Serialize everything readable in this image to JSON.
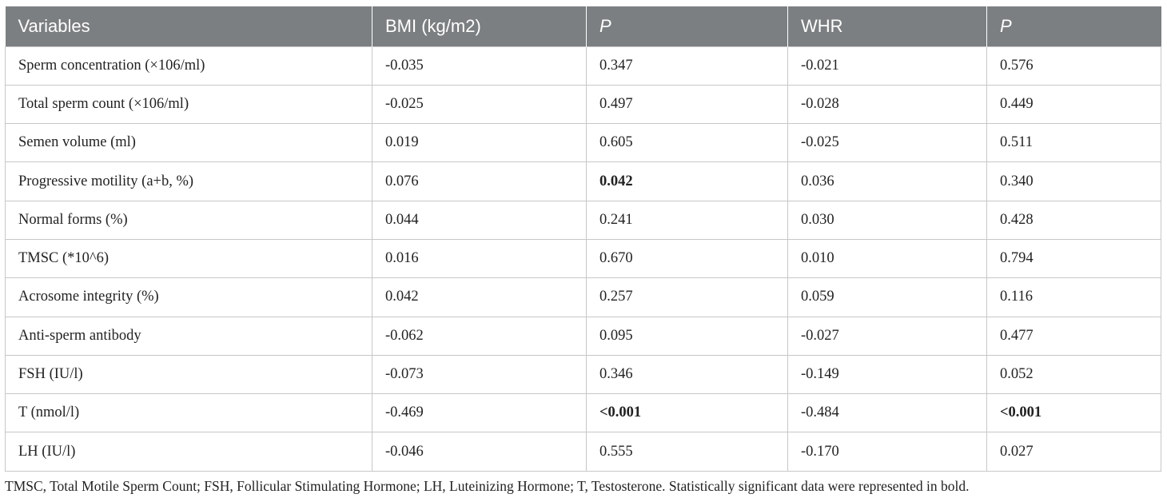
{
  "table": {
    "headers": [
      {
        "label": "Variables",
        "italic": false
      },
      {
        "label": "BMI (kg/m2)",
        "italic": false
      },
      {
        "label": "P",
        "italic": true
      },
      {
        "label": "WHR",
        "italic": false
      },
      {
        "label": "P",
        "italic": true
      }
    ],
    "rows": [
      {
        "variable": "Sperm concentration (×106/ml)",
        "bmi": "-0.035",
        "p_bmi": "0.347",
        "whr": "-0.021",
        "p_whr": "0.576",
        "bold": []
      },
      {
        "variable": "Total sperm count (×106/ml)",
        "bmi": "-0.025",
        "p_bmi": "0.497",
        "whr": "-0.028",
        "p_whr": "0.449",
        "bold": []
      },
      {
        "variable": "Semen volume (ml)",
        "bmi": "0.019",
        "p_bmi": "0.605",
        "whr": "-0.025",
        "p_whr": "0.511",
        "bold": []
      },
      {
        "variable": "Progressive motility (a+b, %)",
        "bmi": "0.076",
        "p_bmi": "0.042",
        "whr": "0.036",
        "p_whr": "0.340",
        "bold": [
          "p_bmi"
        ]
      },
      {
        "variable": "Normal forms (%)",
        "bmi": "0.044",
        "p_bmi": "0.241",
        "whr": "0.030",
        "p_whr": "0.428",
        "bold": []
      },
      {
        "variable": "TMSC (*10^6)",
        "bmi": "0.016",
        "p_bmi": "0.670",
        "whr": "0.010",
        "p_whr": "0.794",
        "bold": []
      },
      {
        "variable": "Acrosome integrity (%)",
        "bmi": "0.042",
        "p_bmi": "0.257",
        "whr": "0.059",
        "p_whr": "0.116",
        "bold": []
      },
      {
        "variable": "Anti-sperm antibody",
        "bmi": "-0.062",
        "p_bmi": "0.095",
        "whr": "-0.027",
        "p_whr": "0.477",
        "bold": []
      },
      {
        "variable": "FSH (IU/l)",
        "bmi": "-0.073",
        "p_bmi": "0.346",
        "whr": "-0.149",
        "p_whr": "0.052",
        "bold": []
      },
      {
        "variable": "T (nmol/l)",
        "bmi": "-0.469",
        "p_bmi": "<0.001",
        "whr": "-0.484",
        "p_whr": "<0.001",
        "bold": [
          "p_bmi",
          "p_whr"
        ]
      },
      {
        "variable": "LH (IU/l)",
        "bmi": "-0.046",
        "p_bmi": "0.555",
        "whr": "-0.170",
        "p_whr": "0.027",
        "bold": []
      }
    ]
  },
  "footnote": "TMSC, Total Motile Sperm Count; FSH, Follicular Stimulating Hormone; LH, Luteinizing Hormone; T, Testosterone. Statistically significant data were represented in bold.",
  "colors": {
    "header_bg": "#7c7f81",
    "header_text": "#ffffff",
    "border": "#c7c7c7",
    "body_text": "#222222"
  }
}
